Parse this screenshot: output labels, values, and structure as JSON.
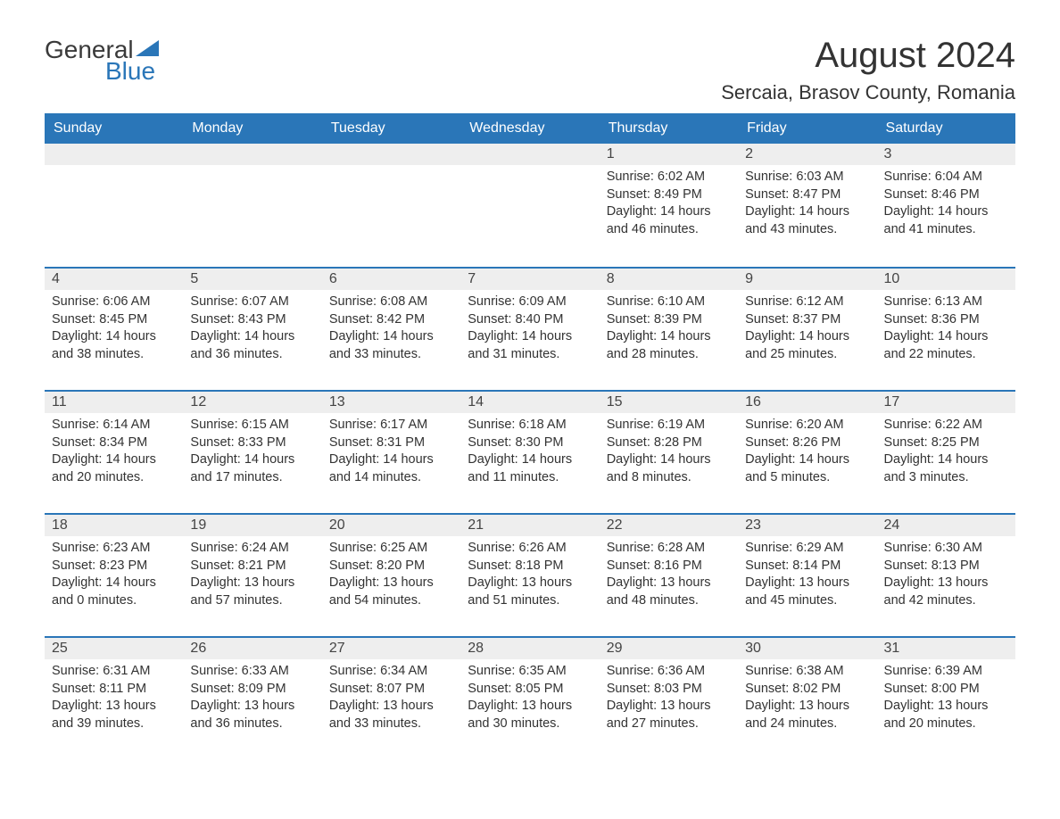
{
  "brand": {
    "general": "General",
    "blue": "Blue"
  },
  "colors": {
    "header_bg": "#2a76b8",
    "header_text": "#ffffff",
    "daynum_bg": "#eeeeee",
    "daynum_border": "#2a76b8",
    "body_text": "#333333",
    "logo_blue": "#2a76b8",
    "logo_gray": "#3a3a3a",
    "page_bg": "#ffffff"
  },
  "typography": {
    "month_title_fontsize": 40,
    "location_fontsize": 22,
    "th_fontsize": 16,
    "daynum_fontsize": 16,
    "body_fontsize": 14.5
  },
  "title": "August 2024",
  "location": "Sercaia, Brasov County, Romania",
  "weekdays": [
    "Sunday",
    "Monday",
    "Tuesday",
    "Wednesday",
    "Thursday",
    "Friday",
    "Saturday"
  ],
  "weeks": [
    [
      {
        "blank": true
      },
      {
        "blank": true
      },
      {
        "blank": true
      },
      {
        "blank": true
      },
      {
        "day": "1",
        "sunrise": "Sunrise: 6:02 AM",
        "sunset": "Sunset: 8:49 PM",
        "daylight": "Daylight: 14 hours and 46 minutes."
      },
      {
        "day": "2",
        "sunrise": "Sunrise: 6:03 AM",
        "sunset": "Sunset: 8:47 PM",
        "daylight": "Daylight: 14 hours and 43 minutes."
      },
      {
        "day": "3",
        "sunrise": "Sunrise: 6:04 AM",
        "sunset": "Sunset: 8:46 PM",
        "daylight": "Daylight: 14 hours and 41 minutes."
      }
    ],
    [
      {
        "day": "4",
        "sunrise": "Sunrise: 6:06 AM",
        "sunset": "Sunset: 8:45 PM",
        "daylight": "Daylight: 14 hours and 38 minutes."
      },
      {
        "day": "5",
        "sunrise": "Sunrise: 6:07 AM",
        "sunset": "Sunset: 8:43 PM",
        "daylight": "Daylight: 14 hours and 36 minutes."
      },
      {
        "day": "6",
        "sunrise": "Sunrise: 6:08 AM",
        "sunset": "Sunset: 8:42 PM",
        "daylight": "Daylight: 14 hours and 33 minutes."
      },
      {
        "day": "7",
        "sunrise": "Sunrise: 6:09 AM",
        "sunset": "Sunset: 8:40 PM",
        "daylight": "Daylight: 14 hours and 31 minutes."
      },
      {
        "day": "8",
        "sunrise": "Sunrise: 6:10 AM",
        "sunset": "Sunset: 8:39 PM",
        "daylight": "Daylight: 14 hours and 28 minutes."
      },
      {
        "day": "9",
        "sunrise": "Sunrise: 6:12 AM",
        "sunset": "Sunset: 8:37 PM",
        "daylight": "Daylight: 14 hours and 25 minutes."
      },
      {
        "day": "10",
        "sunrise": "Sunrise: 6:13 AM",
        "sunset": "Sunset: 8:36 PM",
        "daylight": "Daylight: 14 hours and 22 minutes."
      }
    ],
    [
      {
        "day": "11",
        "sunrise": "Sunrise: 6:14 AM",
        "sunset": "Sunset: 8:34 PM",
        "daylight": "Daylight: 14 hours and 20 minutes."
      },
      {
        "day": "12",
        "sunrise": "Sunrise: 6:15 AM",
        "sunset": "Sunset: 8:33 PM",
        "daylight": "Daylight: 14 hours and 17 minutes."
      },
      {
        "day": "13",
        "sunrise": "Sunrise: 6:17 AM",
        "sunset": "Sunset: 8:31 PM",
        "daylight": "Daylight: 14 hours and 14 minutes."
      },
      {
        "day": "14",
        "sunrise": "Sunrise: 6:18 AM",
        "sunset": "Sunset: 8:30 PM",
        "daylight": "Daylight: 14 hours and 11 minutes."
      },
      {
        "day": "15",
        "sunrise": "Sunrise: 6:19 AM",
        "sunset": "Sunset: 8:28 PM",
        "daylight": "Daylight: 14 hours and 8 minutes."
      },
      {
        "day": "16",
        "sunrise": "Sunrise: 6:20 AM",
        "sunset": "Sunset: 8:26 PM",
        "daylight": "Daylight: 14 hours and 5 minutes."
      },
      {
        "day": "17",
        "sunrise": "Sunrise: 6:22 AM",
        "sunset": "Sunset: 8:25 PM",
        "daylight": "Daylight: 14 hours and 3 minutes."
      }
    ],
    [
      {
        "day": "18",
        "sunrise": "Sunrise: 6:23 AM",
        "sunset": "Sunset: 8:23 PM",
        "daylight": "Daylight: 14 hours and 0 minutes."
      },
      {
        "day": "19",
        "sunrise": "Sunrise: 6:24 AM",
        "sunset": "Sunset: 8:21 PM",
        "daylight": "Daylight: 13 hours and 57 minutes."
      },
      {
        "day": "20",
        "sunrise": "Sunrise: 6:25 AM",
        "sunset": "Sunset: 8:20 PM",
        "daylight": "Daylight: 13 hours and 54 minutes."
      },
      {
        "day": "21",
        "sunrise": "Sunrise: 6:26 AM",
        "sunset": "Sunset: 8:18 PM",
        "daylight": "Daylight: 13 hours and 51 minutes."
      },
      {
        "day": "22",
        "sunrise": "Sunrise: 6:28 AM",
        "sunset": "Sunset: 8:16 PM",
        "daylight": "Daylight: 13 hours and 48 minutes."
      },
      {
        "day": "23",
        "sunrise": "Sunrise: 6:29 AM",
        "sunset": "Sunset: 8:14 PM",
        "daylight": "Daylight: 13 hours and 45 minutes."
      },
      {
        "day": "24",
        "sunrise": "Sunrise: 6:30 AM",
        "sunset": "Sunset: 8:13 PM",
        "daylight": "Daylight: 13 hours and 42 minutes."
      }
    ],
    [
      {
        "day": "25",
        "sunrise": "Sunrise: 6:31 AM",
        "sunset": "Sunset: 8:11 PM",
        "daylight": "Daylight: 13 hours and 39 minutes."
      },
      {
        "day": "26",
        "sunrise": "Sunrise: 6:33 AM",
        "sunset": "Sunset: 8:09 PM",
        "daylight": "Daylight: 13 hours and 36 minutes."
      },
      {
        "day": "27",
        "sunrise": "Sunrise: 6:34 AM",
        "sunset": "Sunset: 8:07 PM",
        "daylight": "Daylight: 13 hours and 33 minutes."
      },
      {
        "day": "28",
        "sunrise": "Sunrise: 6:35 AM",
        "sunset": "Sunset: 8:05 PM",
        "daylight": "Daylight: 13 hours and 30 minutes."
      },
      {
        "day": "29",
        "sunrise": "Sunrise: 6:36 AM",
        "sunset": "Sunset: 8:03 PM",
        "daylight": "Daylight: 13 hours and 27 minutes."
      },
      {
        "day": "30",
        "sunrise": "Sunrise: 6:38 AM",
        "sunset": "Sunset: 8:02 PM",
        "daylight": "Daylight: 13 hours and 24 minutes."
      },
      {
        "day": "31",
        "sunrise": "Sunrise: 6:39 AM",
        "sunset": "Sunset: 8:00 PM",
        "daylight": "Daylight: 13 hours and 20 minutes."
      }
    ]
  ]
}
